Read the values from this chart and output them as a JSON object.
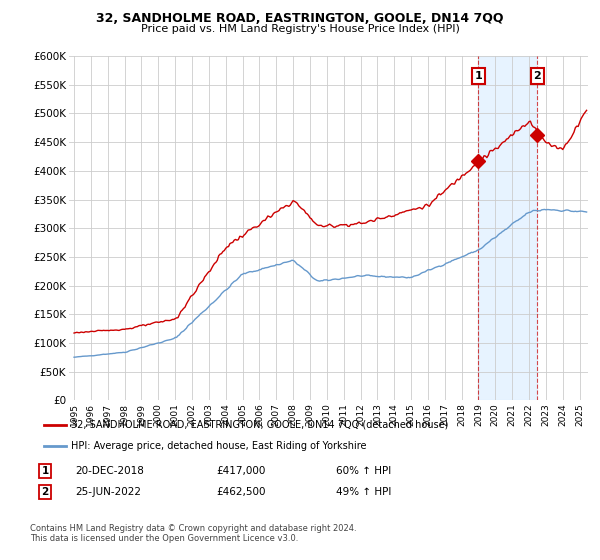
{
  "title": "32, SANDHOLME ROAD, EASTRINGTON, GOOLE, DN14 7QQ",
  "subtitle": "Price paid vs. HM Land Registry's House Price Index (HPI)",
  "legend_line1": "32, SANDHOLME ROAD, EASTRINGTON, GOOLE, DN14 7QQ (detached house)",
  "legend_line2": "HPI: Average price, detached house, East Riding of Yorkshire",
  "footnote": "Contains HM Land Registry data © Crown copyright and database right 2024.\nThis data is licensed under the Open Government Licence v3.0.",
  "marker1_date": "20-DEC-2018",
  "marker1_price": "£417,000",
  "marker1_hpi": "60% ↑ HPI",
  "marker2_date": "25-JUN-2022",
  "marker2_price": "£462,500",
  "marker2_hpi": "49% ↑ HPI",
  "red_color": "#cc0000",
  "blue_color": "#6699cc",
  "background_color": "#ffffff",
  "grid_color": "#cccccc",
  "shaded_region_color": "#ddeeff",
  "ylim_min": 0,
  "ylim_max": 600000,
  "yticks": [
    0,
    50000,
    100000,
    150000,
    200000,
    250000,
    300000,
    350000,
    400000,
    450000,
    500000,
    550000,
    600000
  ],
  "ytick_labels": [
    "£0",
    "£50K",
    "£100K",
    "£150K",
    "£200K",
    "£250K",
    "£300K",
    "£350K",
    "£400K",
    "£450K",
    "£500K",
    "£550K",
    "£600K"
  ],
  "marker1_x": 2019.0,
  "marker1_y": 417000,
  "marker2_x": 2022.5,
  "marker2_y": 462500,
  "xlim_min": 1994.7,
  "xlim_max": 2025.5
}
